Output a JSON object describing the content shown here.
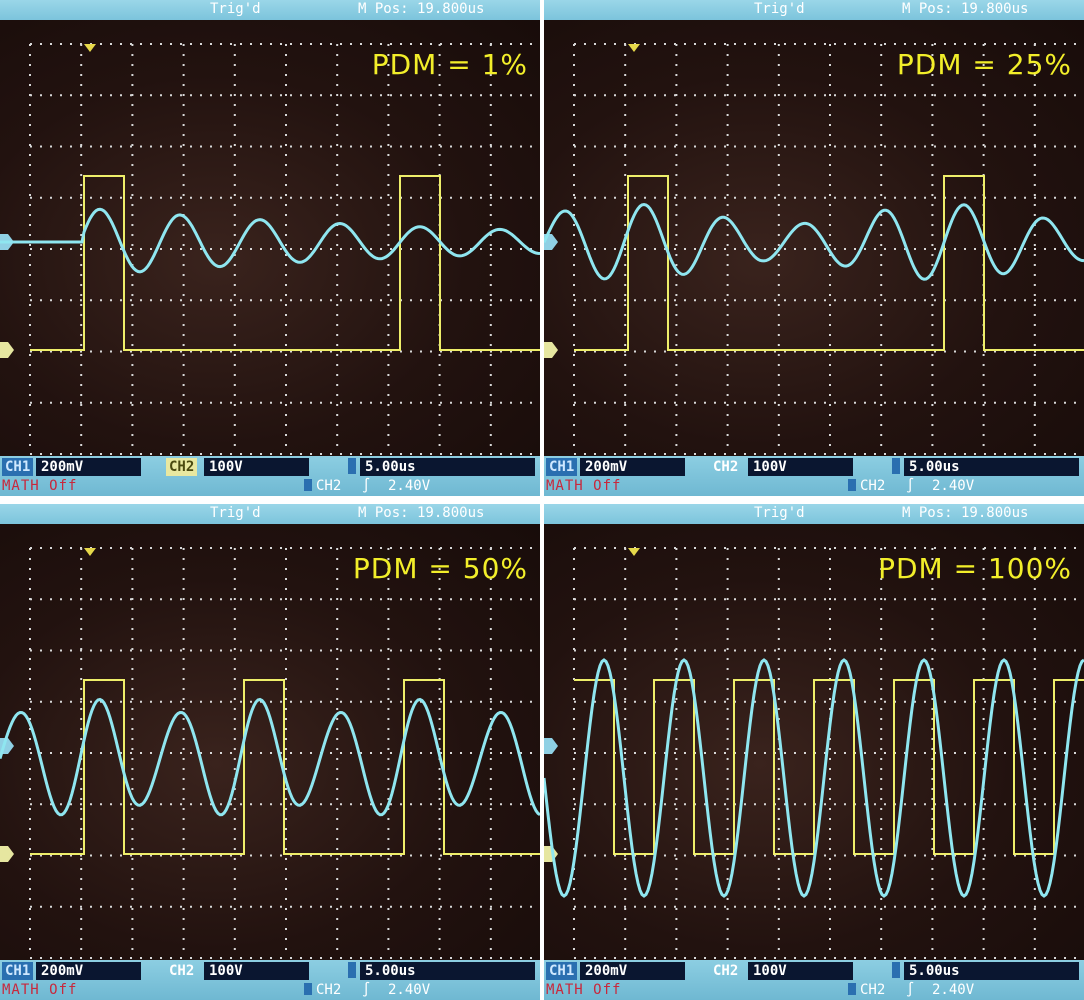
{
  "colors": {
    "ch1_trace": "#8fe6f0",
    "ch2_trace": "#eeee6a",
    "grid": "#d8d8d8",
    "pdm_label": "#f2ee2a",
    "screen_bg": "#22120f",
    "bezel": "#8fd0e4",
    "math_text": "#c8283c"
  },
  "panels": [
    {
      "header": {
        "trig_status": "Trig'd",
        "m_pos": "M Pos: 19.800us"
      },
      "pdm_label": "PDM = 1%",
      "pdm_percent": 1,
      "status": {
        "ch1_tag": "CH1",
        "ch1_scale": "200mV",
        "ch2_tag": "CH2",
        "ch2_scale": "100V",
        "time_base": "5.00us",
        "math": "MATH Off",
        "trigger_source": "CH2",
        "trigger_level": "2.40V"
      }
    },
    {
      "header": {
        "trig_status": "Trig'd",
        "m_pos": "M Pos: 19.800us"
      },
      "pdm_label": "PDM = 25%",
      "pdm_percent": 25,
      "status": {
        "ch1_tag": "CH1",
        "ch1_scale": "200mV",
        "ch2_tag": "CH2",
        "ch2_scale": "100V",
        "time_base": "5.00us",
        "math": "MATH Off",
        "trigger_source": "CH2",
        "trigger_level": "2.40V"
      }
    },
    {
      "header": {
        "trig_status": "Trig'd",
        "m_pos": "M Pos: 19.800us"
      },
      "pdm_label": "PDM = 50%",
      "pdm_percent": 50,
      "status": {
        "ch1_tag": "CH1",
        "ch1_scale": "200mV",
        "ch2_tag": "CH2",
        "ch2_scale": "100V",
        "time_base": "5.00us",
        "math": "MATH Off",
        "trigger_source": "CH2",
        "trigger_level": "2.40V"
      }
    },
    {
      "header": {
        "trig_status": "Trig'd",
        "m_pos": "M Pos: 19.800us"
      },
      "pdm_label": "PDM = 100%",
      "pdm_percent": 100,
      "status": {
        "ch1_tag": "CH1",
        "ch1_scale": "200mV",
        "ch2_tag": "CH2",
        "ch2_scale": "100V",
        "time_base": "5.00us",
        "math": "MATH Off",
        "trigger_source": "CH2",
        "trigger_level": "2.40V"
      }
    }
  ]
}
